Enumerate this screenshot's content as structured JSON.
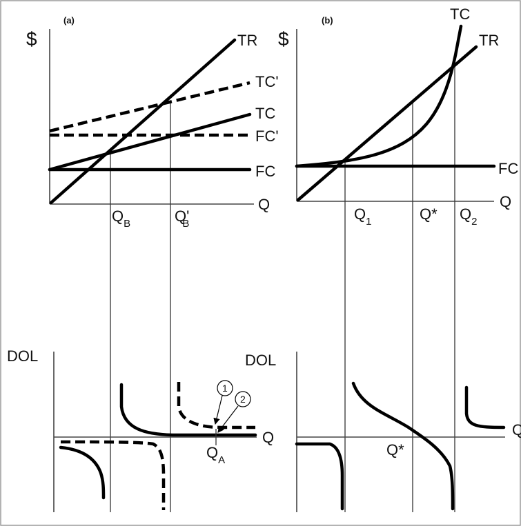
{
  "panel_a": {
    "tag": "(a)",
    "y_axis": "$",
    "x_axis": "Q",
    "curves": {
      "tr": "TR",
      "tc_prime": "TC'",
      "tc": "TC",
      "fc_prime": "FC'",
      "fc": "FC"
    },
    "q_b": {
      "main": "Q",
      "sub": "B"
    },
    "q_b_prime": {
      "main": "Q'",
      "sub": "B"
    }
  },
  "panel_b": {
    "tag": "(b)",
    "y_axis": "$",
    "x_axis": "Q",
    "curves": {
      "tc": "TC",
      "tr": "TR",
      "fc": "FC"
    },
    "q1": {
      "main": "Q",
      "sub": "1"
    },
    "q_star": "Q*",
    "q2": {
      "main": "Q",
      "sub": "2"
    }
  },
  "dol_a": {
    "y_axis": "DOL",
    "x_axis": "Q",
    "q_a": {
      "main": "Q",
      "sub": "A"
    },
    "callout_1": "1",
    "callout_2": "2"
  },
  "dol_b": {
    "y_axis": "DOL",
    "x_axis": "Q",
    "q_star": "Q*"
  }
}
